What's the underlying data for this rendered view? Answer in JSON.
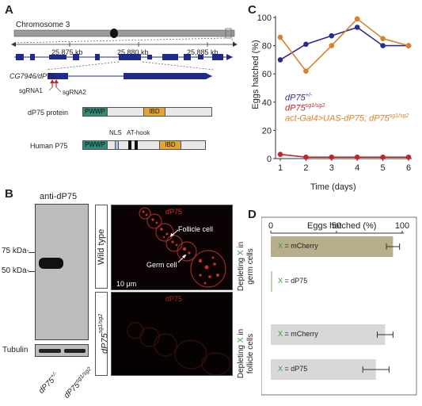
{
  "panelA": {
    "letter": "A",
    "chromosome_label": "Chromosome 3",
    "kb_labels": [
      "25,875 kb",
      "25,880 kb",
      "25,885 kb"
    ],
    "gene_label": "CG7946/dP75",
    "sgrna1": "sgRNA1",
    "sgrna2": "sgRNA2",
    "dp75_protein_label": "dP75 protein",
    "human_label": "Human P75",
    "pwwp": "PWWP",
    "ibd": "IBD",
    "nls": "NLS",
    "athook": "AT-hook",
    "colors": {
      "pwwp": "#2e8b78",
      "ibd": "#e3a531",
      "gene": "#1f2a8a",
      "sgrna": "#c0272d"
    }
  },
  "panelB": {
    "letter": "B",
    "antibody": "anti-dP75",
    "mw_labels": [
      "75 kDa-",
      "50 kDa-"
    ],
    "tubulin": "Tubulin",
    "lane1": "dP75",
    "lane1_sup": "+/-",
    "lane2": "dP75",
    "lane2_sup": "sg1/sg2",
    "wild_type": "Wild type",
    "mut_label": "dP75",
    "mut_sup": "sg1/sg2",
    "stain": "dP75",
    "follicle": "Follicle cell",
    "germ": "Germ cell",
    "scale": "10 μm"
  },
  "panelC": {
    "letter": "C",
    "chart_data": {
      "type": "line",
      "xlabel": "Time (days)",
      "ylabel": "Eggs hatched (%)",
      "x": [
        1,
        2,
        3,
        4,
        5,
        6
      ],
      "ylim": [
        0,
        100
      ],
      "yticks": [
        0,
        20,
        40,
        60,
        80,
        100
      ],
      "series": [
        {
          "name": "dP75",
          "sup": "+/-",
          "color": "#2b2b8c",
          "values": [
            70,
            81,
            87,
            93,
            80,
            80
          ]
        },
        {
          "name": "dP75",
          "sup": "sg1/sg2",
          "color": "#c0272d",
          "values": [
            3,
            1,
            1,
            1,
            1,
            1
          ]
        },
        {
          "name": "act-Gal4>UAS-dP75; dP75",
          "sup": "sg1/sg2",
          "color": "#d9802a",
          "values": [
            86,
            62,
            80,
            99,
            85,
            80
          ]
        }
      ]
    }
  },
  "panelD": {
    "letter": "D",
    "chart_data": {
      "type": "bar",
      "xlabel": "Eggs hatched (%)",
      "xticks": [
        0,
        50,
        100
      ],
      "xlim": [
        0,
        100
      ],
      "groups": [
        {
          "label": "Depleting X in germ cells",
          "bars": [
            {
              "label": "X = mCherry",
              "value": 93,
              "err": 5,
              "color": "#b7ae8c"
            },
            {
              "label": "X = dP75",
              "value": 0,
              "err": 0,
              "color": "#b7ae8c"
            }
          ]
        },
        {
          "label": "Depleting X in follicle cells",
          "bars": [
            {
              "label": "X = mCherry",
              "value": 87,
              "err": 6,
              "color": "#d8d8d8"
            },
            {
              "label": "X = dP75",
              "value": 80,
              "err": 10,
              "color": "#d8d8d8"
            }
          ]
        }
      ]
    },
    "group1_line1": "Depleting",
    "group1_x": "X",
    "group1_in": " in",
    "group1_line2": "germ cells",
    "group2_line1": "Depleting",
    "group2_x": "X",
    "group2_in": " in",
    "group2_line2": "follicle cells",
    "bar_x": "X",
    "bar1_text": " = mCherry",
    "bar2_text": " = dP75",
    "bar3_text": " = mCherry",
    "bar4_text": " = dP75",
    "x_color": "#2e9a2e"
  }
}
